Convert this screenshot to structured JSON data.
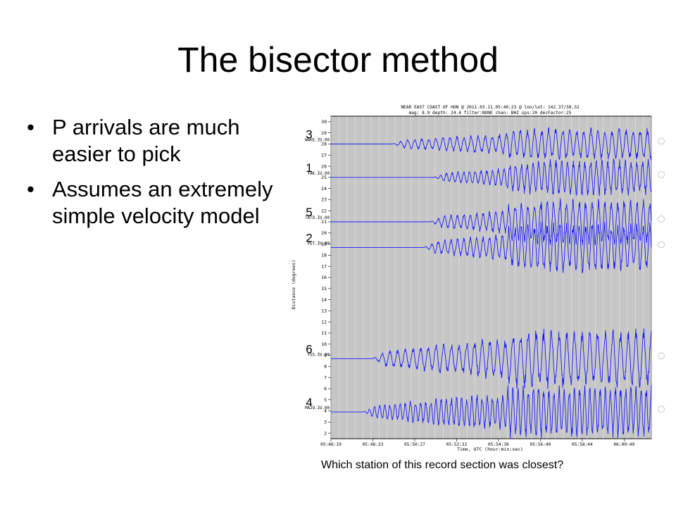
{
  "slide": {
    "title": "The bisector method",
    "bullets": [
      "P arrivals are much easier to pick",
      "Assumes an extremely simple velocity model"
    ],
    "caption": "Which station of this record section was closest?"
  },
  "chart_data": {
    "type": "line",
    "title_line1": "NEAR EAST COAST OF HON @ 2011.03.11.05:46:23 @ lon/lat: 142.37/38.32",
    "title_line2": "mag: 8.9 depth: 24.4 filter:NONE chan: BHZ sps:20 decFactor:25",
    "xlabel": "Time, UTC (hour:min:sec)",
    "ylabel": "Distance (degrees)",
    "ylim": [
      1.5,
      30.5
    ],
    "yticks": [
      2,
      3,
      4,
      5,
      6,
      7,
      8,
      9,
      10,
      11,
      12,
      13,
      14,
      15,
      16,
      17,
      18,
      19,
      20,
      21,
      22,
      23,
      24,
      25,
      26,
      27,
      28,
      29,
      30
    ],
    "xticks": [
      "05:46:19",
      "05:48:23",
      "05:50:27",
      "05:52:32",
      "05:54:36",
      "05:56:40",
      "05:58:44",
      "06:00:49"
    ],
    "grid": true,
    "series": [
      {
        "name": "WAKE.IU.00",
        "distance": 28,
        "label": "3",
        "onset": 0.19,
        "amp": 1.4,
        "period": 0.022
      },
      {
        "name": "YAK.IU.00",
        "distance": 25,
        "label": "1",
        "onset": 0.32,
        "amp": 1.6,
        "period": 0.018
      },
      {
        "name": "TATO.IU.00",
        "distance": 21,
        "label": "5",
        "onset": 0.31,
        "amp": 2.0,
        "period": 0.02
      },
      {
        "name": "PET.IU.00",
        "distance": 18.7,
        "label": "2",
        "onset": 0.29,
        "amp": 2.2,
        "period": 0.02
      },
      {
        "name": "YSS.IU.00",
        "distance": 8.7,
        "label": "6",
        "onset": 0.13,
        "amp": 2.6,
        "period": 0.024
      },
      {
        "name": "MAJO.IU.00",
        "distance": 3.9,
        "label": "4",
        "onset": 0.1,
        "amp": 2.3,
        "period": 0.016
      }
    ]
  }
}
